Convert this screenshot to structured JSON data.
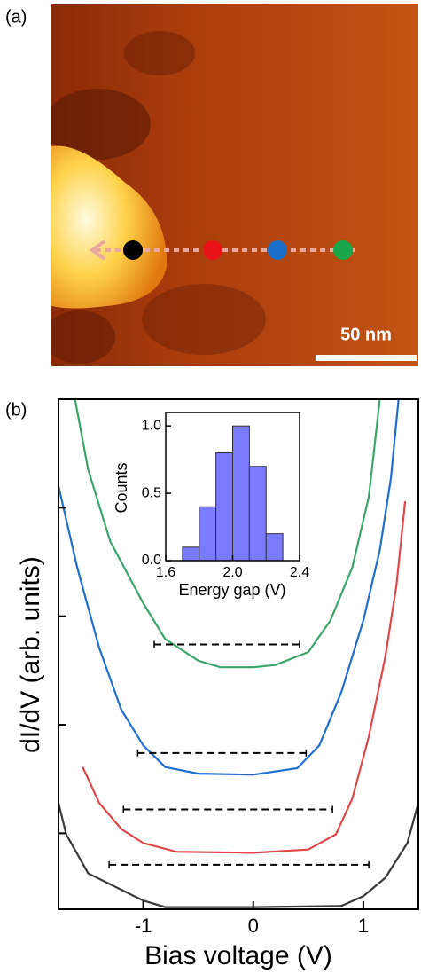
{
  "panel_labels": [
    "(a)",
    "(b)"
  ],
  "image": {
    "scale_bar": "50 nm"
  },
  "chart_data": [
    {
      "type": "line",
      "xlabel": "Bias voltage (V)",
      "ylabel": "dI/dV (arb. units)",
      "xlim": [
        -1.77,
        1.5
      ],
      "xticks": [
        -1,
        0,
        1
      ],
      "ylim": [
        0.3,
        5
      ],
      "yticks": [
        1,
        2,
        3,
        4
      ],
      "series": [
        {
          "color": "#3a3a3a",
          "x": [
            -1.77,
            -1.7,
            -1.5,
            -1.2,
            -1.0,
            -0.8,
            0,
            0.8,
            1.0,
            1.2,
            1.4,
            1.5
          ],
          "values": [
            1.28,
            0.99,
            0.63,
            0.48,
            0.38,
            0.32,
            0.32,
            0.33,
            0.42,
            0.59,
            0.91,
            1.28
          ]
        },
        {
          "color": "#e04848",
          "x": [
            -1.55,
            -1.4,
            -1.2,
            -1.0,
            -0.7,
            0,
            0.5,
            0.75,
            0.9,
            1.05,
            1.2,
            1.3,
            1.38
          ],
          "values": [
            1.61,
            1.28,
            1.04,
            0.91,
            0.83,
            0.82,
            0.85,
            0.99,
            1.32,
            1.89,
            2.63,
            3.28,
            4.06
          ]
        },
        {
          "color": "#1f6fd0",
          "x": [
            -1.77,
            -1.6,
            -1.4,
            -1.2,
            -1.0,
            -0.8,
            -0.5,
            0,
            0.4,
            0.6,
            0.8,
            1.0,
            1.15,
            1.25,
            1.32
          ],
          "values": [
            4.2,
            3.45,
            2.71,
            2.14,
            1.81,
            1.61,
            1.55,
            1.54,
            1.6,
            1.81,
            2.3,
            2.96,
            3.61,
            4.27,
            5.0
          ]
        },
        {
          "color": "#3aa66a",
          "x": [
            -1.62,
            -1.5,
            -1.3,
            -1.0,
            -0.8,
            -0.5,
            -0.3,
            0,
            0.2,
            0.5,
            0.7,
            0.9,
            1.05,
            1.15
          ],
          "values": [
            5.0,
            4.35,
            3.69,
            3.12,
            2.79,
            2.59,
            2.53,
            2.53,
            2.55,
            2.67,
            2.96,
            3.45,
            4.1,
            5.0
          ]
        }
      ],
      "gap_markers": [
        {
          "x": [
            -0.9,
            0.42
          ],
          "y": 2.74
        },
        {
          "x": [
            -1.05,
            0.48
          ],
          "y": 1.74
        },
        {
          "x": [
            -1.18,
            0.72
          ],
          "y": 1.22
        },
        {
          "x": [
            -1.31,
            1.05
          ],
          "y": 0.71
        }
      ]
    },
    {
      "type": "histogram",
      "xlabel": "Energy gap (V)",
      "ylabel": "Counts",
      "color": "#7b7bff",
      "bins": [
        1.7,
        1.8,
        1.9,
        2.0,
        2.1,
        2.2,
        2.3
      ],
      "values": [
        0.1,
        0.4,
        0.8,
        1.0,
        0.7,
        0.2
      ],
      "xlim": [
        1.6,
        2.4
      ],
      "xticks": [
        1.6,
        {
          "value": 2.0,
          "label": "2.0"
        },
        2.4
      ],
      "ylim": [
        0,
        1.1
      ],
      "yticks": [
        {
          "value": 0,
          "label": "0.0"
        },
        {
          "value": 0.5,
          "label": "0.5"
        },
        {
          "value": 1.0,
          "label": "1.0"
        }
      ]
    }
  ]
}
